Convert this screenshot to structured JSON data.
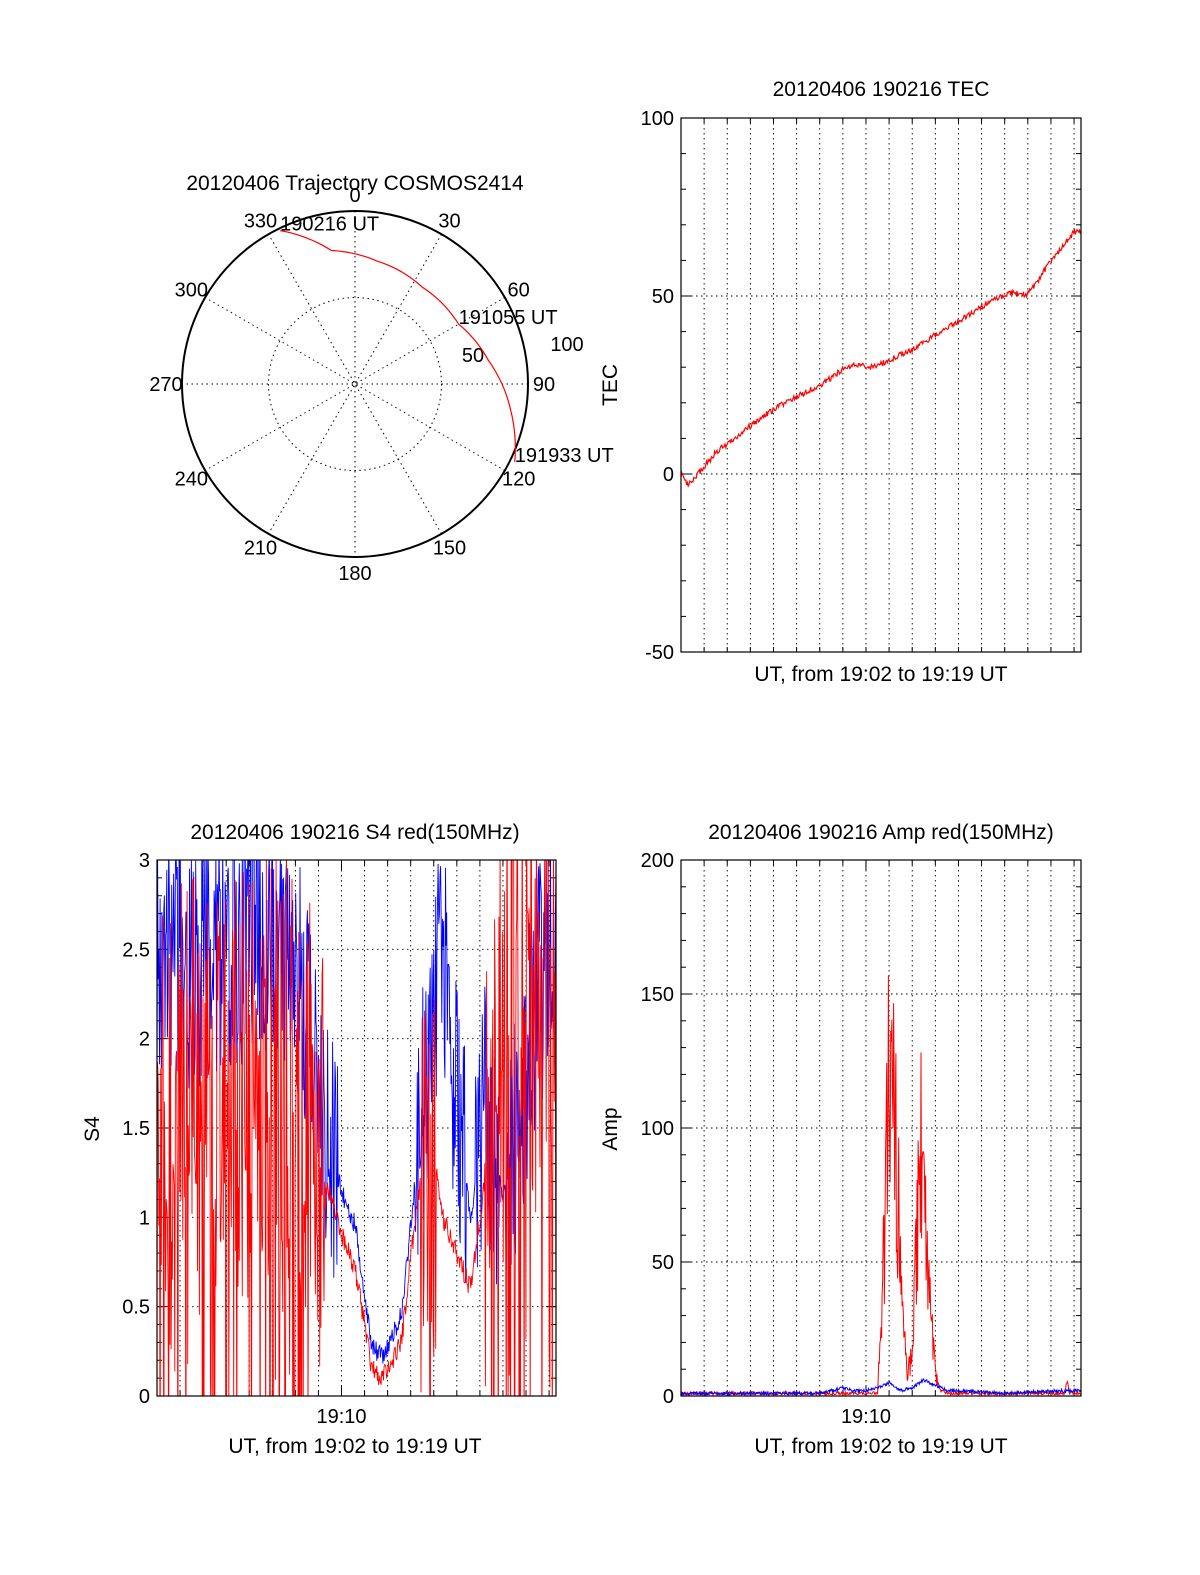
{
  "colors": {
    "red_series": "#ff0000",
    "blue_series": "#0000ff",
    "axes": "#000000"
  },
  "chart_data": [
    {
      "type": "polar",
      "title": "20120406 Trajectory COSMOS2414",
      "angle_labels": [
        "0",
        "30",
        "60",
        "90",
        "120",
        "150",
        "180",
        "210",
        "240",
        "270",
        "300",
        "330"
      ],
      "radial_labels": [
        "50",
        "100"
      ],
      "rlim": [
        0,
        100
      ],
      "trajectory": {
        "color": "red",
        "points": [
          {
            "azimuth": 334,
            "r": 97,
            "label": "190216 UT"
          },
          {
            "azimuth": 350,
            "r": 77
          },
          {
            "azimuth": 10,
            "r": 71
          },
          {
            "azimuth": 35,
            "r": 67
          },
          {
            "azimuth": 60,
            "r": 68,
            "label": "191055 UT"
          },
          {
            "azimuth": 80,
            "r": 77
          },
          {
            "azimuth": 100,
            "r": 90
          },
          {
            "azimuth": 116,
            "r": 101,
            "label": "191933 UT"
          }
        ]
      }
    },
    {
      "type": "line",
      "title": "20120406 190216 TEC",
      "xlabel": "UT, from 19:02 to 19:19 UT",
      "ylabel": "TEC",
      "xlim": [
        0,
        17.3
      ],
      "ylim": [
        -50,
        100
      ],
      "yticks": [
        -50,
        0,
        50,
        100
      ],
      "grid": true,
      "series": [
        {
          "color": "red",
          "x": [
            0,
            0.3,
            1.0,
            1.5,
            2.5,
            3.5,
            4.5,
            5.4,
            6.3,
            6.9,
            7.5,
            8.3,
            9.0,
            10.0,
            11.0,
            12.3,
            13.5,
            14.3,
            14.9,
            15.3,
            15.8,
            16.5,
            17.0,
            17.3
          ],
          "y": [
            0,
            -3,
            2,
            6,
            11,
            16,
            20,
            23,
            26,
            29,
            31,
            30,
            32,
            35,
            39,
            44,
            49,
            51,
            50,
            53,
            58,
            64,
            68,
            68
          ]
        }
      ]
    },
    {
      "type": "line",
      "title": "20120406 190216 S4 red(150MHz)",
      "xlabel": "UT, from 19:02 to 19:19 UT",
      "ylabel": "S4",
      "xlim": [
        0,
        17.3
      ],
      "ylim": [
        0,
        3
      ],
      "yticks": [
        "0",
        "0.5",
        "1",
        "1.5",
        "2",
        "2.5",
        "3"
      ],
      "xtick_labels": [
        "19:10"
      ],
      "grid": true,
      "series": [
        {
          "color": "blue",
          "x": [
            0,
            1.5,
            3,
            4.5,
            6,
            6.8,
            7.3,
            8,
            8.6,
            9,
            9.3,
            9.7,
            10.2,
            10.6,
            11.2,
            11.8,
            12.4,
            13,
            13.6,
            14.2,
            15,
            15.7,
            16.4,
            17.3
          ],
          "y": [
            2.5,
            2.4,
            2.5,
            2.6,
            2.4,
            2.0,
            1.4,
            1.15,
            0.95,
            0.55,
            0.3,
            0.22,
            0.33,
            0.45,
            1.2,
            2.0,
            2.5,
            1.6,
            1.0,
            1.6,
            1.1,
            1.6,
            2.2,
            2.6
          ]
        },
        {
          "color": "red",
          "x": [
            0,
            1.5,
            3,
            4.5,
            6,
            6.8,
            7.3,
            8,
            8.6,
            9,
            9.3,
            9.7,
            10.2,
            10.6,
            11.2,
            11.8,
            12.4,
            13,
            13.6,
            14.2,
            15,
            15.7,
            16.4,
            17.3
          ],
          "y": [
            1.6,
            1.9,
            1.7,
            2.0,
            1.8,
            1.5,
            1.2,
            0.9,
            0.7,
            0.4,
            0.15,
            0.1,
            0.2,
            0.3,
            1.0,
            1.5,
            1.0,
            0.8,
            0.6,
            1.2,
            2.3,
            2.6,
            2.2,
            2.4
          ]
        }
      ]
    },
    {
      "type": "line",
      "title": "20120406 190216 Amp red(150MHz)",
      "xlabel": "UT, from 19:02 to 19:19 UT",
      "ylabel": "Amp",
      "xlim": [
        0,
        17.3
      ],
      "ylim": [
        0,
        200
      ],
      "yticks": [
        0,
        50,
        100,
        150,
        200
      ],
      "xtick_labels": [
        "19:10"
      ],
      "grid": true,
      "series": [
        {
          "color": "red",
          "x": [
            0,
            8.5,
            8.8,
            9.0,
            9.2,
            9.4,
            9.6,
            9.8,
            10.0,
            10.2,
            10.4,
            10.6,
            10.8,
            11.0,
            11.2,
            11.5,
            16.6,
            16.7,
            16.8,
            17.3
          ],
          "y": [
            1,
            1,
            55,
            126,
            104,
            70,
            28,
            8,
            18,
            60,
            92,
            55,
            30,
            10,
            2,
            1,
            1,
            6,
            1,
            1
          ]
        },
        {
          "color": "blue",
          "x": [
            0,
            6,
            7.0,
            7.4,
            8.0,
            8.5,
            9.0,
            9.5,
            10.0,
            10.5,
            11.0,
            11.5,
            12.0,
            14.0,
            16.5,
            17.3
          ],
          "y": [
            1,
            1,
            3,
            2,
            2,
            3,
            5,
            2,
            3,
            6,
            4,
            2,
            2,
            1,
            2,
            2
          ]
        }
      ]
    }
  ]
}
